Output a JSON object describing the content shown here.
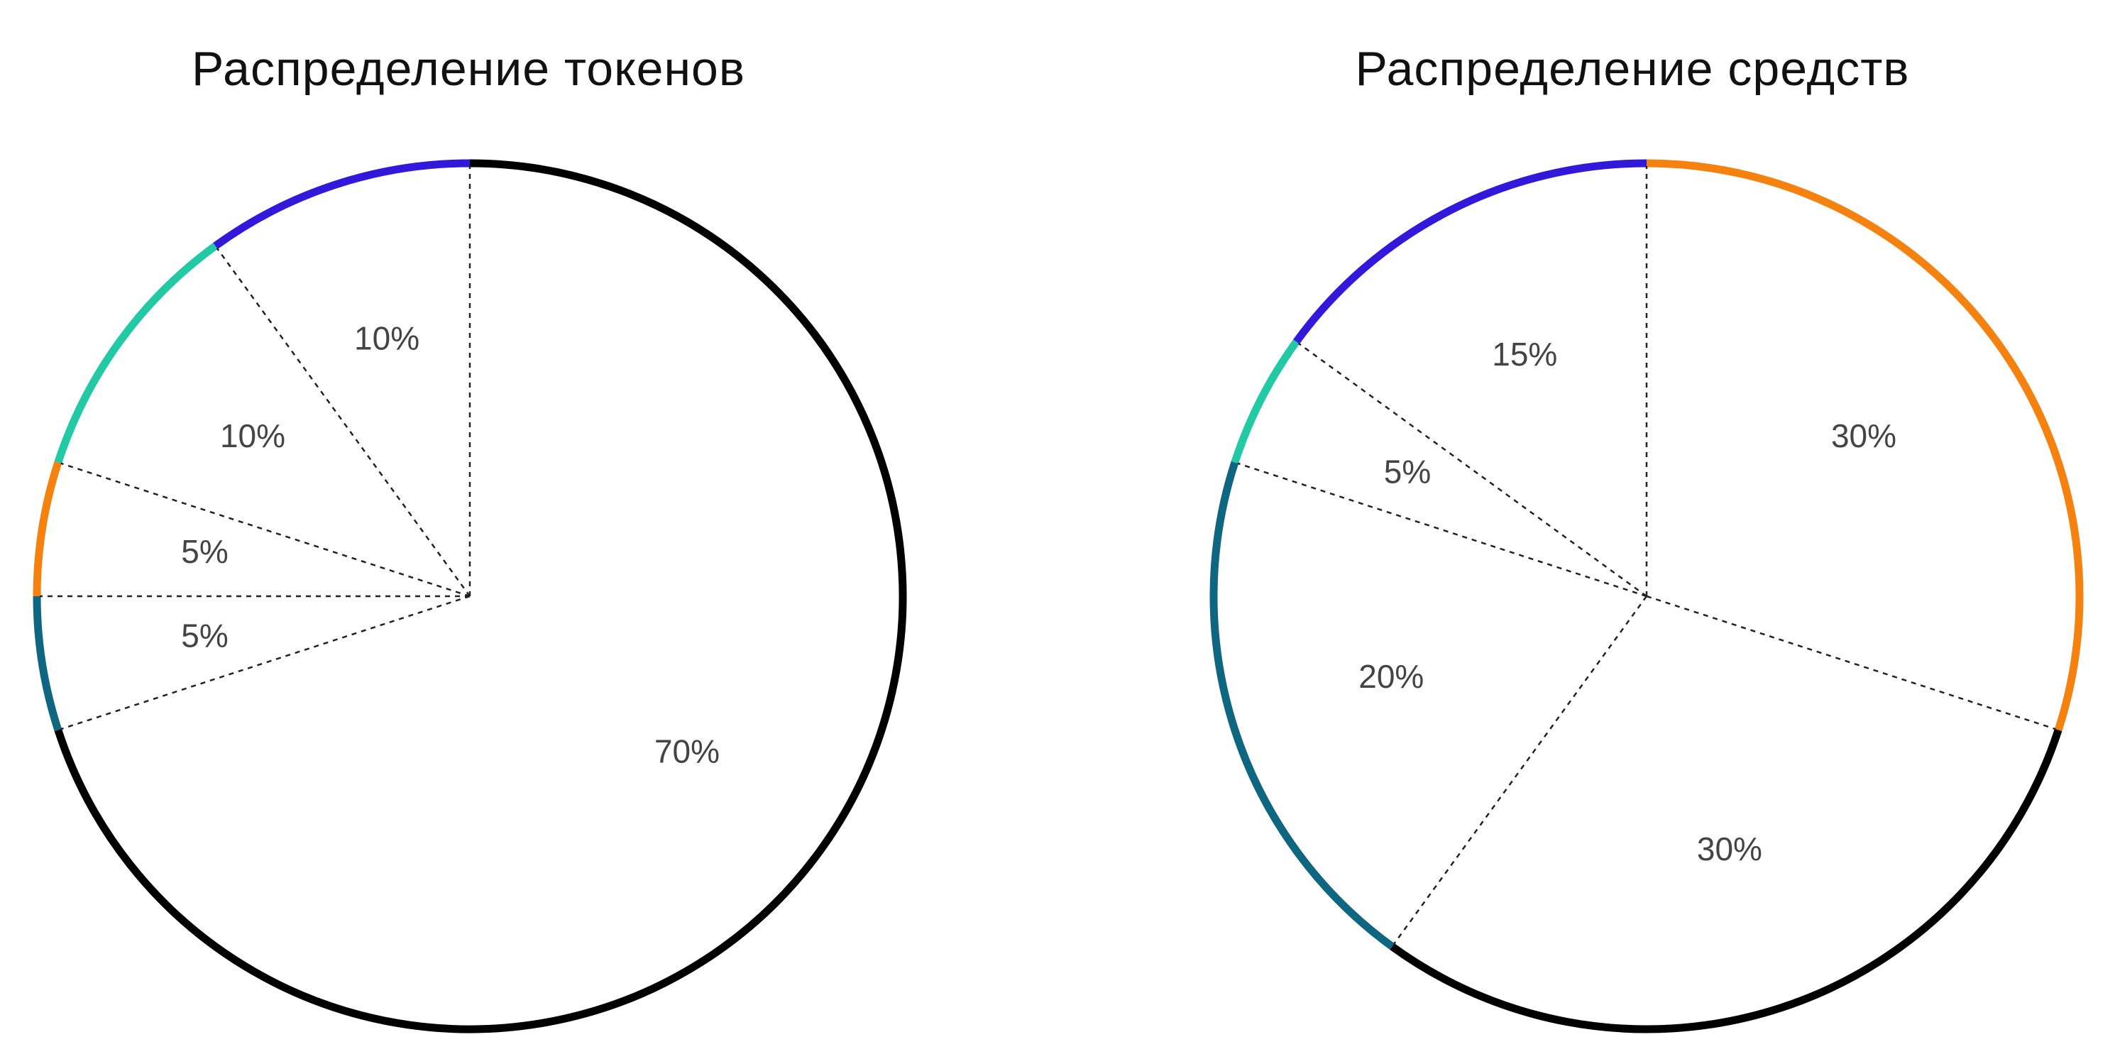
{
  "charts": [
    {
      "title": "Распределение токенов",
      "chart_data": {
        "type": "pie",
        "title": "Распределение токенов",
        "start_angle_deg": 0,
        "direction": "clockwise",
        "slices": [
          {
            "label": "70%",
            "value": 70,
            "color": "#000000"
          },
          {
            "label": "5%",
            "value": 5,
            "color": "#0f6680"
          },
          {
            "label": "5%",
            "value": 5,
            "color": "#f5820f"
          },
          {
            "label": "10%",
            "value": 10,
            "color": "#22c9a5"
          },
          {
            "label": "10%",
            "value": 10,
            "color": "#3118db"
          }
        ]
      }
    },
    {
      "title": "Распределение средств",
      "chart_data": {
        "type": "pie",
        "title": "Распределение средств",
        "start_angle_deg": 0,
        "direction": "clockwise",
        "slices": [
          {
            "label": "30%",
            "value": 30,
            "color": "#f5820f"
          },
          {
            "label": "30%",
            "value": 30,
            "color": "#000000"
          },
          {
            "label": "20%",
            "value": 20,
            "color": "#0f6680"
          },
          {
            "label": "5%",
            "value": 5,
            "color": "#22c9a5"
          },
          {
            "label": "15%",
            "value": 15,
            "color": "#3118db"
          }
        ]
      }
    }
  ]
}
